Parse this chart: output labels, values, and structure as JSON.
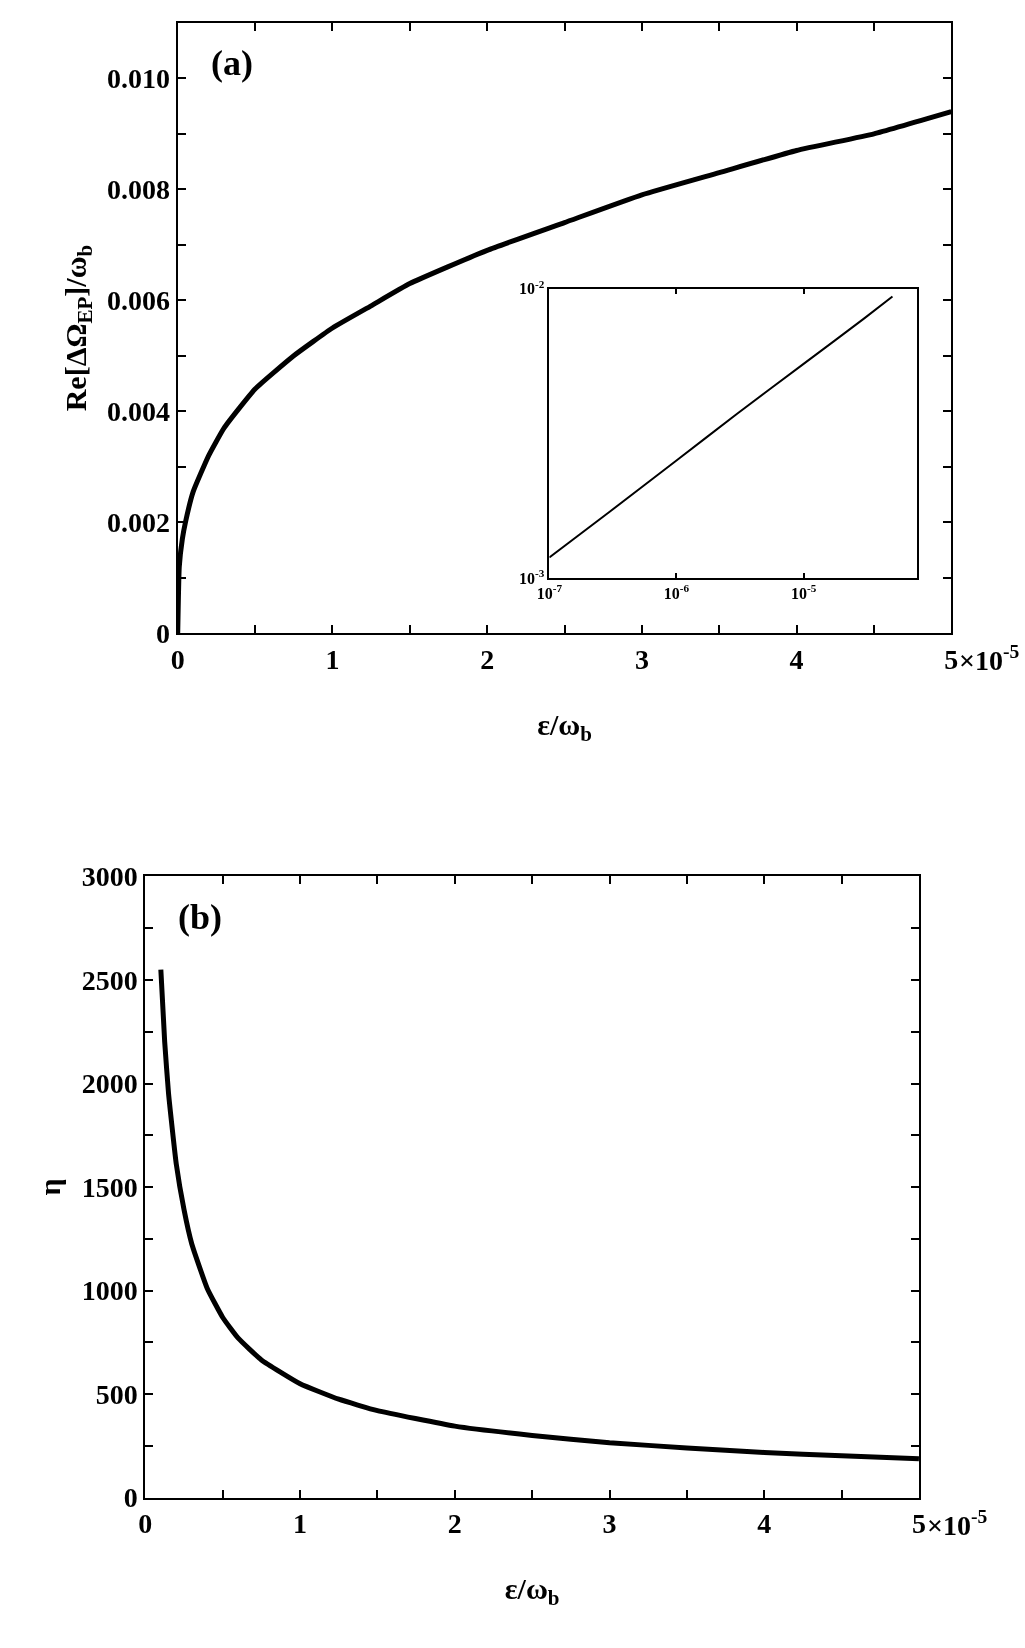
{
  "chart_data": [
    {
      "type": "line",
      "xlabel": "ε/ω$_{b}$",
      "ylabel": "Re[ΔΩ$_{EP}$]/ω$_{b}$",
      "annotations": [
        "(a)",
        "×10$^{-5}$"
      ],
      "x": [
        0,
        0.01,
        0.03,
        0.05,
        0.1,
        0.2,
        0.3,
        0.5,
        0.75,
        1,
        1.25,
        1.5,
        2,
        2.5,
        3,
        3.5,
        4,
        4.5,
        5
      ],
      "series": [
        {
          "color": "#000000",
          "values": [
            0,
            0.0012,
            0.0017,
            0.002,
            0.00255,
            0.0032,
            0.0037,
            0.0044,
            0.005,
            0.0055,
            0.0059,
            0.0063,
            0.0069,
            0.0074,
            0.0079,
            0.0083,
            0.0087,
            0.009,
            0.0094
          ]
        }
      ],
      "xlim": [
        0,
        5
      ],
      "ylim": [
        0,
        0.011
      ],
      "xticks": [
        0,
        {
          "value": 0.5,
          "label": null
        },
        1,
        {
          "value": 1.5,
          "label": null
        },
        2,
        {
          "value": 2.5,
          "label": null
        },
        3,
        {
          "value": 3.5,
          "label": null
        },
        4,
        {
          "value": 4.5,
          "label": null
        },
        5
      ],
      "yticks": [
        0,
        {
          "value": 0.001,
          "label": null
        },
        0.002,
        {
          "value": 0.003,
          "label": null
        },
        0.004,
        {
          "value": 0.005,
          "label": null
        },
        0.006,
        {
          "value": 0.007,
          "label": null
        },
        0.008,
        {
          "value": 0.009,
          "label": null
        },
        {
          "value": 0.01,
          "label": "0.010"
        },
        {
          "value": 0.011,
          "label": null
        }
      ]
    },
    {
      "type": "line",
      "log": "xy",
      "x": [
        1e-07,
        3e-07,
        1e-06,
        3e-06,
        1e-05,
        3e-05,
        5e-05
      ],
      "series": [
        {
          "color": "#000000",
          "values": [
            0.00118,
            0.0017,
            0.00255,
            0.0037,
            0.0055,
            0.0079,
            0.0094
          ]
        }
      ],
      "xlim": [
        1e-07,
        7.8e-05
      ],
      "ylim": [
        0.001,
        0.01
      ],
      "xticks": [
        {
          "value": 1e-07,
          "label": "10$^{-7}$"
        },
        {
          "value": 1e-06,
          "label": "10$^{-6}$"
        },
        {
          "value": 1e-05,
          "label": "10$^{-5}$"
        }
      ],
      "yticks": [
        {
          "value": 0.001,
          "label": "10$^{-3}$"
        },
        {
          "value": 0.01,
          "label": "10$^{-2}$"
        }
      ]
    },
    {
      "type": "line",
      "xlabel": "ε/ω$_{b}$",
      "ylabel": "η",
      "annotations": [
        "(b)",
        "×10$^{-5}$"
      ],
      "x": [
        0.1,
        0.125,
        0.15,
        0.2,
        0.25,
        0.3,
        0.4,
        0.5,
        0.6,
        0.75,
        1,
        1.25,
        1.5,
        2,
        2.5,
        3,
        3.5,
        4,
        4.5,
        5
      ],
      "series": [
        {
          "color": "#000000",
          "values": [
            2550,
            2200,
            1950,
            1610,
            1390,
            1225,
            1010,
            870,
            770,
            665,
            550,
            475,
            420,
            345,
            300,
            265,
            240,
            218,
            202,
            188
          ]
        }
      ],
      "xlim": [
        0,
        5
      ],
      "ylim": [
        0,
        3000
      ],
      "xticks": [
        0,
        {
          "value": 0.5,
          "label": null
        },
        1,
        {
          "value": 1.5,
          "label": null
        },
        2,
        {
          "value": 2.5,
          "label": null
        },
        3,
        {
          "value": 3.5,
          "label": null
        },
        4,
        {
          "value": 4.5,
          "label": null
        },
        5
      ],
      "yticks": [
        0,
        {
          "value": 250,
          "label": null
        },
        500,
        {
          "value": 750,
          "label": null
        },
        1000,
        {
          "value": 1250,
          "label": null
        },
        1500,
        {
          "value": 1750,
          "label": null
        },
        2000,
        {
          "value": 2250,
          "label": null
        },
        2500,
        {
          "value": 2750,
          "label": null
        },
        3000
      ]
    }
  ]
}
